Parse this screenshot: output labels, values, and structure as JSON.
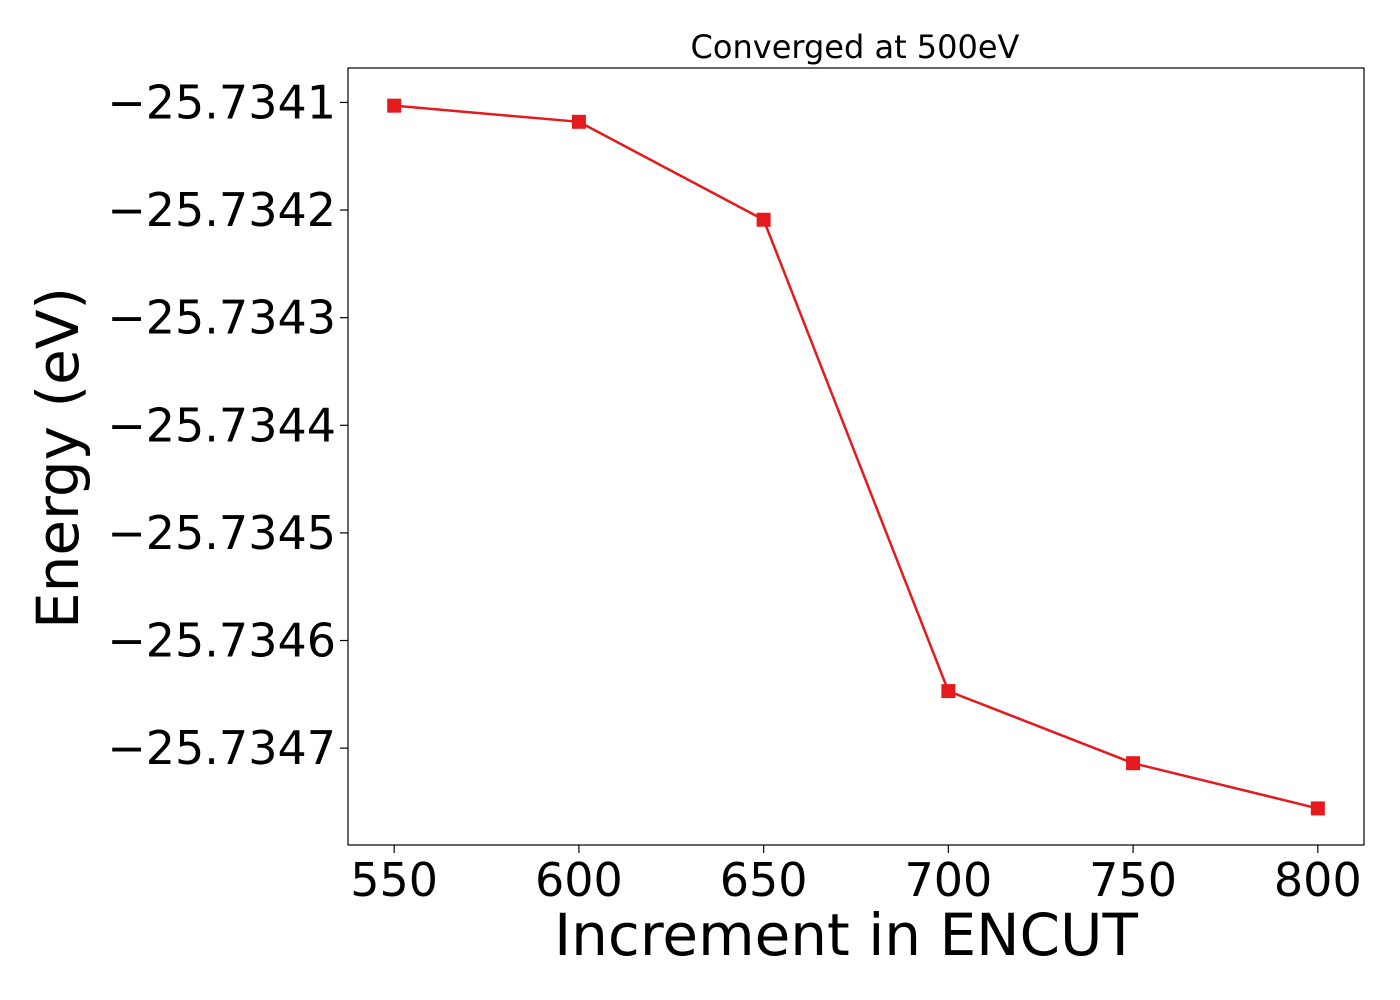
{
  "chart_data": {
    "type": "line",
    "title": "Converged at 500eV",
    "xlabel": "Increment in ENCUT",
    "ylabel": "Energy (eV)",
    "x": [
      550,
      600,
      650,
      700,
      750,
      800
    ],
    "series": [
      {
        "values": [
          -25.734103,
          -25.734118,
          -25.734209,
          -25.734647,
          -25.734714,
          -25.734756
        ],
        "color": "#e41a1c",
        "marker": "square"
      }
    ],
    "xticks": [
      550,
      600,
      650,
      700,
      750,
      800
    ],
    "xtick_labels": [
      "550",
      "600",
      "650",
      "700",
      "750",
      "800"
    ],
    "yticks": [
      -25.7341,
      -25.7342,
      -25.7343,
      -25.7344,
      -25.7345,
      -25.7346,
      -25.7347
    ],
    "ytick_labels": [
      "−25.7341",
      "−25.7342",
      "−25.7343",
      "−25.7344",
      "−25.7345",
      "−25.7346",
      "−25.7347"
    ],
    "xlim": [
      537.5,
      812.5
    ],
    "ylim": [
      -25.73479,
      -25.734068
    ],
    "grid": false,
    "legend": false
  }
}
